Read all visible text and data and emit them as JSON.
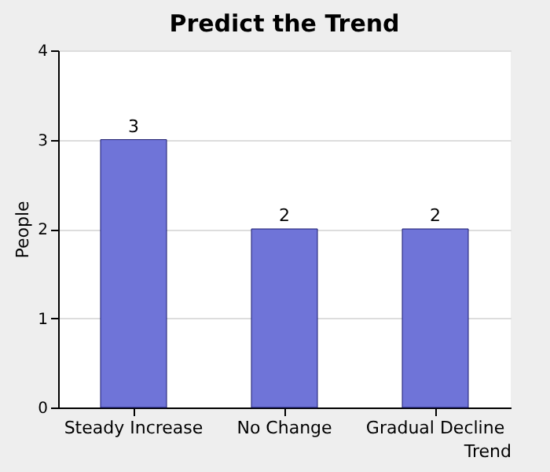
{
  "chart_data": {
    "type": "bar",
    "title": "Predict the Trend",
    "categories": [
      "Steady Increase",
      "No Change",
      "Gradual Decline"
    ],
    "values": [
      3,
      2,
      2
    ],
    "color": "#6f74d8",
    "xlabel": "Trend",
    "ylabel": "People",
    "ylim": [
      0,
      4
    ],
    "yticks": [
      0,
      1,
      2,
      3,
      4
    ],
    "grid": "y",
    "data_labels": true
  }
}
